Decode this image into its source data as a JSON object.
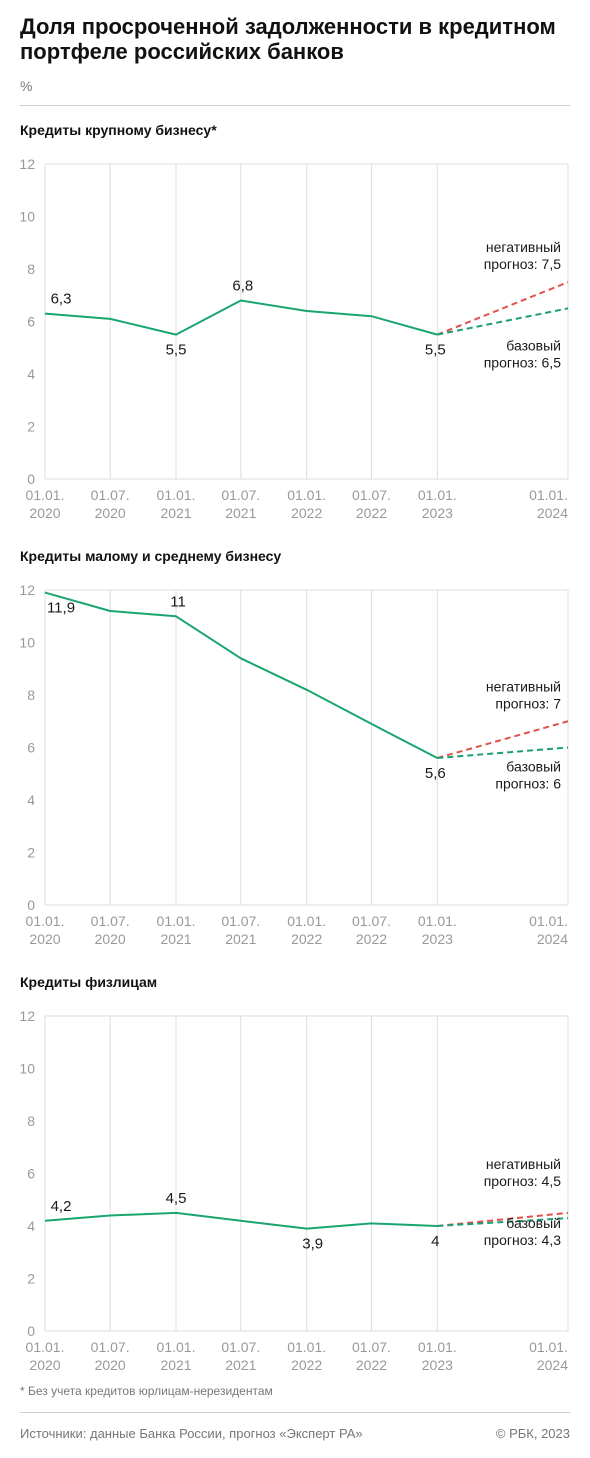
{
  "header": {
    "title": "Доля просроченной задолженности в кредитном портфеле российских банков",
    "unit": "%"
  },
  "colors": {
    "actual": "#1aa56e",
    "negative": "#e0524a",
    "base": "#1c9e74",
    "grid": "#dddddd",
    "axis_text": "#999999"
  },
  "chart_data": [
    {
      "type": "line",
      "title": "Кредиты крупному бизнесу*",
      "categories": [
        "01.01.\n2020",
        "01.07.\n2020",
        "01.01.\n2021",
        "01.07.\n2021",
        "01.01.\n2022",
        "01.07.\n2022",
        "01.01.\n2023",
        "01.01.\n2024"
      ],
      "x": [
        "2020-01-01",
        "2020-07-01",
        "2021-01-01",
        "2021-07-01",
        "2022-01-01",
        "2022-07-01",
        "2023-01-01"
      ],
      "ylim": [
        0,
        12
      ],
      "yticks": [
        0,
        2,
        4,
        6,
        8,
        10,
        12
      ],
      "grid": "vertical",
      "series": [
        {
          "values": [
            6.3,
            6.1,
            5.5,
            6.8,
            6.4,
            6.2,
            5.5
          ],
          "labels": [
            "6,3",
            "",
            "5,5",
            "6,8",
            "",
            "",
            "5,5"
          ]
        }
      ],
      "forecasts": [
        {
          "from": 5.5,
          "to": 7.5,
          "label": "негативный\nпрогноз: 7,5",
          "color": "negative"
        },
        {
          "from": 5.5,
          "to": 6.5,
          "label": "базовый\nпрогноз: 6,5",
          "color": "base"
        }
      ]
    },
    {
      "type": "line",
      "title": "Кредиты малому и среднему бизнесу",
      "categories": [
        "01.01.\n2020",
        "01.07.\n2020",
        "01.01.\n2021",
        "01.07.\n2021",
        "01.01.\n2022",
        "01.07.\n2022",
        "01.01.\n2023",
        "01.01.\n2024"
      ],
      "x": [
        "2020-01-01",
        "2020-07-01",
        "2021-01-01",
        "2021-07-01",
        "2022-01-01",
        "2022-07-01",
        "2023-01-01"
      ],
      "ylim": [
        0,
        12
      ],
      "yticks": [
        0,
        2,
        4,
        6,
        8,
        10,
        12
      ],
      "grid": "vertical",
      "series": [
        {
          "values": [
            11.9,
            11.2,
            11.0,
            9.4,
            8.2,
            6.9,
            5.6
          ],
          "labels": [
            "11,9",
            "",
            "11",
            "",
            "",
            "",
            "5,6"
          ]
        }
      ],
      "forecasts": [
        {
          "from": 5.6,
          "to": 7.0,
          "label": "негативный\nпрогноз: 7",
          "color": "negative"
        },
        {
          "from": 5.6,
          "to": 6.0,
          "label": "базовый\nпрогноз: 6",
          "color": "base"
        }
      ]
    },
    {
      "type": "line",
      "title": "Кредиты физлицам",
      "categories": [
        "01.01.\n2020",
        "01.07.\n2020",
        "01.01.\n2021",
        "01.07.\n2021",
        "01.01.\n2022",
        "01.07.\n2022",
        "01.01.\n2023",
        "01.01.\n2024"
      ],
      "x": [
        "2020-01-01",
        "2020-07-01",
        "2021-01-01",
        "2021-07-01",
        "2022-01-01",
        "2022-07-01",
        "2023-01-01"
      ],
      "ylim": [
        0,
        12
      ],
      "yticks": [
        0,
        2,
        4,
        6,
        8,
        10,
        12
      ],
      "grid": "vertical",
      "series": [
        {
          "values": [
            4.2,
            4.4,
            4.5,
            4.2,
            3.9,
            4.1,
            4.0
          ],
          "labels": [
            "4,2",
            "",
            "4,5",
            "",
            "3,9",
            "",
            "4"
          ]
        }
      ],
      "forecasts": [
        {
          "from": 4.0,
          "to": 4.5,
          "label": "негативный\nпрогноз: 4,5",
          "color": "negative"
        },
        {
          "from": 4.0,
          "to": 4.3,
          "label": "базовый\nпрогноз: 4,3",
          "color": "base"
        }
      ]
    }
  ],
  "footer": {
    "footnote": "* Без учета кредитов юрлицам-нерезидентам",
    "source": "Источники: данные Банка России, прогноз «Эксперт РА»",
    "copyright": "© РБК, 2023"
  }
}
